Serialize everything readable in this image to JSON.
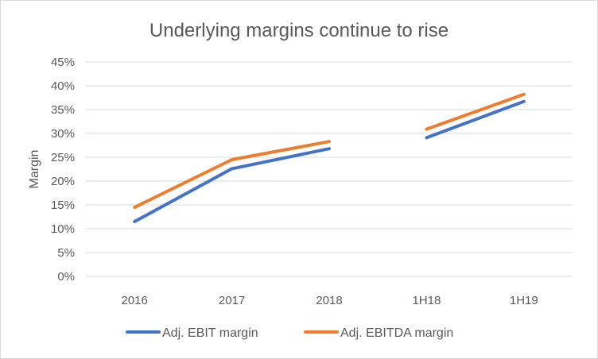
{
  "chart_data": {
    "type": "line",
    "title": "Underlying margins continue to rise",
    "ylabel": "Margin",
    "xlabel": "",
    "categories": [
      "2016",
      "2017",
      "2018",
      "1H18",
      "1H19"
    ],
    "ylim": [
      0,
      45
    ],
    "yticks": [
      0,
      5,
      10,
      15,
      20,
      25,
      30,
      35,
      40,
      45
    ],
    "ytick_labels": [
      "0%",
      "5%",
      "10%",
      "15%",
      "20%",
      "25%",
      "30%",
      "35%",
      "40%",
      "45%"
    ],
    "grid": true,
    "legend_position": "bottom",
    "series": [
      {
        "name": "Adj. EBIT margin",
        "color": "#4472c4",
        "segments": [
          {
            "categories": [
              "2016",
              "2017",
              "2018"
            ],
            "values": [
              11.5,
              22.6,
              26.8
            ]
          },
          {
            "categories": [
              "1H18",
              "1H19"
            ],
            "values": [
              29.1,
              36.7
            ]
          }
        ]
      },
      {
        "name": "Adj. EBITDA margin",
        "color": "#ed7d31",
        "segments": [
          {
            "categories": [
              "2016",
              "2017",
              "2018"
            ],
            "values": [
              14.5,
              24.5,
              28.3
            ]
          },
          {
            "categories": [
              "1H18",
              "1H19"
            ],
            "values": [
              30.9,
              38.2
            ]
          }
        ]
      }
    ]
  }
}
